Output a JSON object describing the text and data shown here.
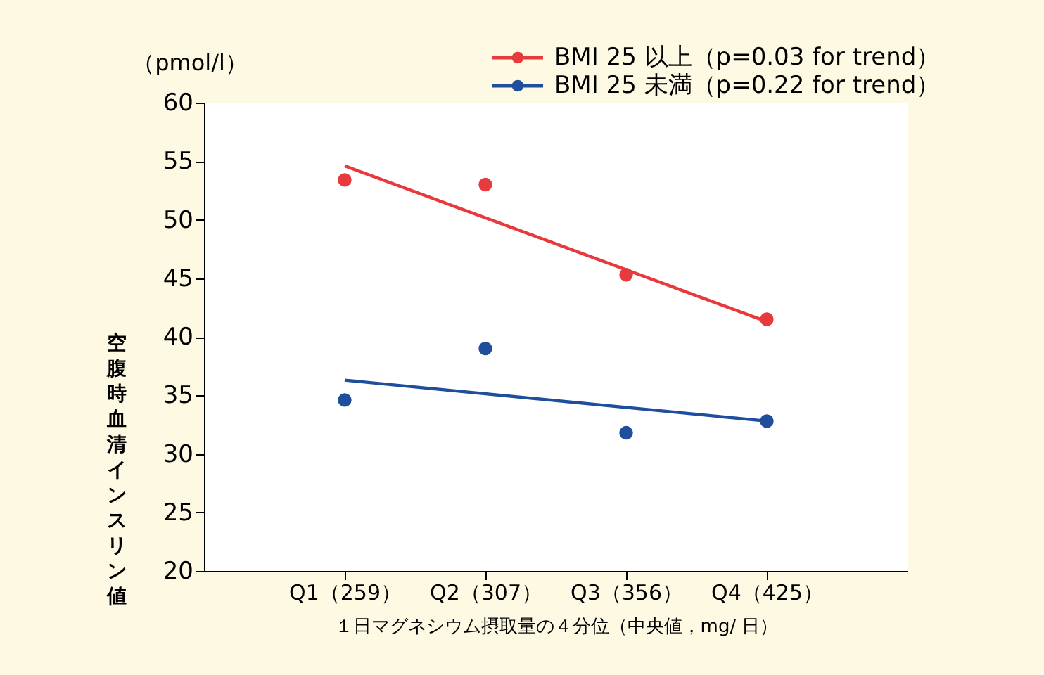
{
  "chart_data": {
    "type": "scatter",
    "xlabel": "１日マグネシウム摂取量の４分位（中央値，mg/ 日）",
    "ylabel": "空腹時血清インスリン値",
    "annotations": [
      "（pmol/l）"
    ],
    "categories": [
      "Q1（259）",
      "Q2（307）",
      "Q3（356）",
      "Q4（425）"
    ],
    "ylim": [
      20,
      60
    ],
    "yticks": [
      20,
      25,
      30,
      35,
      40,
      45,
      50,
      55,
      60
    ],
    "grid": false,
    "legend": "top right",
    "marker": "circle",
    "series": [
      {
        "name": "BMI 25 以上（p=0.03 for trend）",
        "color": "#e8393c",
        "values": [
          53.4,
          53.0,
          45.3,
          41.5
        ]
      },
      {
        "name": "BMI 25 未満（p=0.22 for trend）",
        "color": "#1f4e9c",
        "values": [
          34.6,
          39.0,
          31.8,
          32.8
        ]
      },
      {
        "color": "#e8393c",
        "type": "line",
        "marker": "none",
        "x": [
          "Q1（259）",
          "Q4（425）"
        ],
        "values": [
          54.6,
          41.3
        ]
      },
      {
        "color": "#1f4e9c",
        "type": "line",
        "marker": "none",
        "x": [
          "Q1（259）",
          "Q4（425）"
        ],
        "values": [
          36.3,
          32.8
        ]
      }
    ]
  }
}
